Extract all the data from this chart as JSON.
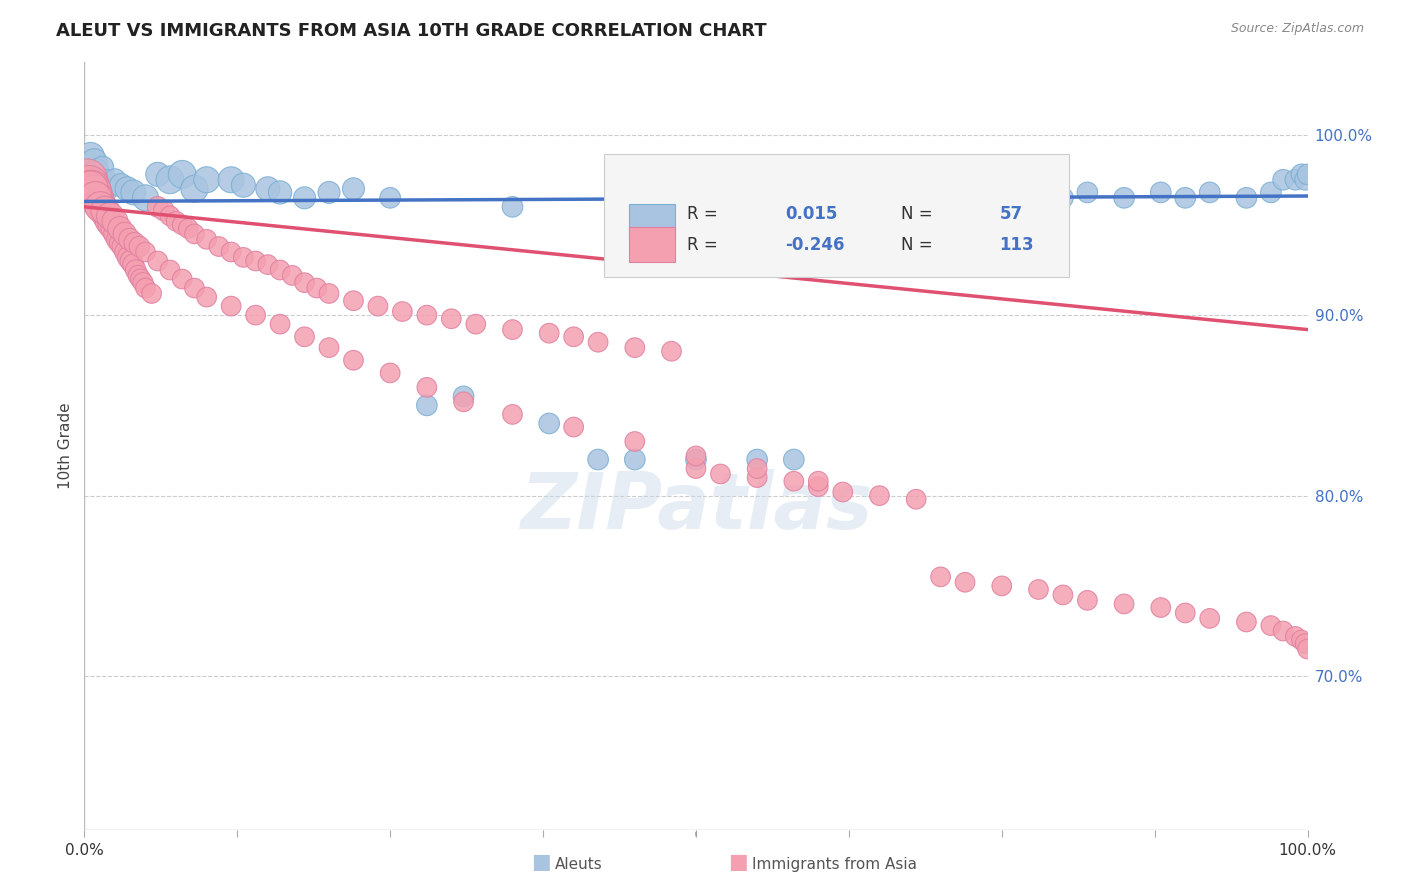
{
  "title": "ALEUT VS IMMIGRANTS FROM ASIA 10TH GRADE CORRELATION CHART",
  "source": "Source: ZipAtlas.com",
  "ylabel": "10th Grade",
  "watermark": "ZIPatlas",
  "legend": {
    "blue_label": "Aleuts",
    "pink_label": "Immigrants from Asia",
    "blue_R_val": "0.015",
    "blue_N_val": "57",
    "pink_R_val": "-0.246",
    "pink_N_val": "113"
  },
  "right_yticks": [
    "100.0%",
    "90.0%",
    "80.0%",
    "70.0%"
  ],
  "right_ytick_vals": [
    1.0,
    0.9,
    0.8,
    0.7
  ],
  "xmin": 0.0,
  "xmax": 1.0,
  "ymin": 0.615,
  "ymax": 1.04,
  "blue_color": "#a8c4e0",
  "blue_edge_color": "#7BAFD4",
  "pink_color": "#f4a0b0",
  "pink_edge_color": "#E080A0",
  "blue_line_color": "#4472C4",
  "pink_line_color": "#E05070",
  "grid_color": "#cccccc",
  "blue_scatter_x": [
    0.005,
    0.008,
    0.01,
    0.012,
    0.015,
    0.018,
    0.02,
    0.025,
    0.03,
    0.035,
    0.04,
    0.05,
    0.06,
    0.07,
    0.08,
    0.09,
    0.1,
    0.12,
    0.13,
    0.15,
    0.16,
    0.18,
    0.2,
    0.22,
    0.25,
    0.28,
    0.31,
    0.35,
    0.38,
    0.42,
    0.45,
    0.48,
    0.5,
    0.52,
    0.55,
    0.58,
    0.6,
    0.62,
    0.65,
    0.68,
    0.7,
    0.72,
    0.75,
    0.78,
    0.8,
    0.82,
    0.85,
    0.88,
    0.9,
    0.92,
    0.95,
    0.97,
    0.98,
    0.99,
    0.995,
    0.998,
    1.0
  ],
  "blue_scatter_y": [
    0.988,
    0.985,
    0.98,
    0.975,
    0.982,
    0.975,
    0.97,
    0.975,
    0.972,
    0.97,
    0.968,
    0.965,
    0.978,
    0.975,
    0.978,
    0.97,
    0.975,
    0.975,
    0.972,
    0.97,
    0.968,
    0.965,
    0.968,
    0.97,
    0.965,
    0.85,
    0.855,
    0.96,
    0.84,
    0.82,
    0.82,
    0.96,
    0.82,
    0.965,
    0.82,
    0.82,
    0.968,
    0.965,
    0.968,
    0.965,
    0.968,
    0.965,
    0.96,
    0.968,
    0.965,
    0.968,
    0.965,
    0.968,
    0.965,
    0.968,
    0.965,
    0.968,
    0.975,
    0.975,
    0.978,
    0.975,
    0.978
  ],
  "blue_scatter_s": [
    40,
    35,
    30,
    28,
    25,
    22,
    22,
    25,
    28,
    30,
    32,
    35,
    30,
    40,
    40,
    38,
    35,
    35,
    30,
    30,
    28,
    25,
    25,
    25,
    22,
    22,
    22,
    22,
    22,
    22,
    22,
    22,
    22,
    22,
    22,
    22,
    22,
    22,
    22,
    22,
    22,
    22,
    22,
    22,
    22,
    22,
    22,
    22,
    22,
    22,
    22,
    22,
    22,
    22,
    22,
    22,
    22
  ],
  "pink_scatter_x": [
    0.002,
    0.004,
    0.006,
    0.008,
    0.01,
    0.012,
    0.014,
    0.016,
    0.018,
    0.02,
    0.022,
    0.024,
    0.026,
    0.028,
    0.03,
    0.032,
    0.034,
    0.036,
    0.038,
    0.04,
    0.042,
    0.044,
    0.046,
    0.048,
    0.05,
    0.055,
    0.06,
    0.065,
    0.07,
    0.075,
    0.08,
    0.085,
    0.09,
    0.1,
    0.11,
    0.12,
    0.13,
    0.14,
    0.15,
    0.16,
    0.17,
    0.18,
    0.19,
    0.2,
    0.22,
    0.24,
    0.26,
    0.28,
    0.3,
    0.32,
    0.35,
    0.38,
    0.4,
    0.42,
    0.45,
    0.48,
    0.5,
    0.52,
    0.55,
    0.58,
    0.6,
    0.62,
    0.65,
    0.68,
    0.7,
    0.72,
    0.75,
    0.78,
    0.8,
    0.82,
    0.85,
    0.88,
    0.9,
    0.92,
    0.95,
    0.97,
    0.98,
    0.99,
    0.995,
    0.998,
    1.0,
    0.005,
    0.009,
    0.013,
    0.017,
    0.021,
    0.025,
    0.029,
    0.033,
    0.037,
    0.041,
    0.045,
    0.05,
    0.06,
    0.07,
    0.08,
    0.09,
    0.1,
    0.12,
    0.14,
    0.16,
    0.18,
    0.2,
    0.22,
    0.25,
    0.28,
    0.31,
    0.35,
    0.4,
    0.45,
    0.5,
    0.55,
    0.6
  ],
  "pink_scatter_y": [
    0.975,
    0.972,
    0.97,
    0.968,
    0.965,
    0.962,
    0.96,
    0.958,
    0.955,
    0.952,
    0.95,
    0.948,
    0.945,
    0.942,
    0.94,
    0.938,
    0.935,
    0.932,
    0.93,
    0.928,
    0.925,
    0.922,
    0.92,
    0.918,
    0.915,
    0.912,
    0.96,
    0.958,
    0.955,
    0.952,
    0.95,
    0.948,
    0.945,
    0.942,
    0.938,
    0.935,
    0.932,
    0.93,
    0.928,
    0.925,
    0.922,
    0.918,
    0.915,
    0.912,
    0.908,
    0.905,
    0.902,
    0.9,
    0.898,
    0.895,
    0.892,
    0.89,
    0.888,
    0.885,
    0.882,
    0.88,
    0.815,
    0.812,
    0.81,
    0.808,
    0.805,
    0.802,
    0.8,
    0.798,
    0.755,
    0.752,
    0.75,
    0.748,
    0.745,
    0.742,
    0.74,
    0.738,
    0.735,
    0.732,
    0.73,
    0.728,
    0.725,
    0.722,
    0.72,
    0.718,
    0.715,
    0.97,
    0.965,
    0.96,
    0.958,
    0.955,
    0.952,
    0.948,
    0.945,
    0.942,
    0.94,
    0.938,
    0.935,
    0.93,
    0.925,
    0.92,
    0.915,
    0.91,
    0.905,
    0.9,
    0.895,
    0.888,
    0.882,
    0.875,
    0.868,
    0.86,
    0.852,
    0.845,
    0.838,
    0.83,
    0.822,
    0.815,
    0.808
  ],
  "pink_scatter_s": [
    90,
    80,
    72,
    65,
    58,
    52,
    48,
    44,
    40,
    38,
    36,
    34,
    32,
    30,
    28,
    27,
    26,
    25,
    24,
    23,
    22,
    21,
    21,
    21,
    20,
    20,
    22,
    22,
    20,
    20,
    20,
    20,
    20,
    20,
    20,
    20,
    20,
    20,
    20,
    20,
    20,
    20,
    20,
    20,
    20,
    20,
    20,
    20,
    20,
    20,
    20,
    20,
    20,
    20,
    20,
    20,
    20,
    20,
    20,
    20,
    20,
    20,
    20,
    20,
    20,
    20,
    20,
    20,
    20,
    20,
    20,
    20,
    20,
    20,
    20,
    20,
    20,
    20,
    20,
    20,
    20,
    65,
    55,
    48,
    42,
    38,
    35,
    30,
    28,
    25,
    23,
    22,
    20,
    20,
    20,
    20,
    20,
    20,
    20,
    20,
    20,
    20,
    20,
    20,
    20,
    20,
    20,
    20,
    20,
    20,
    20,
    20,
    20
  ],
  "blue_trendline_x": [
    0.0,
    1.0
  ],
  "blue_trendline_y": [
    0.963,
    0.966
  ],
  "pink_trendline_x": [
    0.0,
    1.0
  ],
  "pink_trendline_y": [
    0.96,
    0.892
  ]
}
